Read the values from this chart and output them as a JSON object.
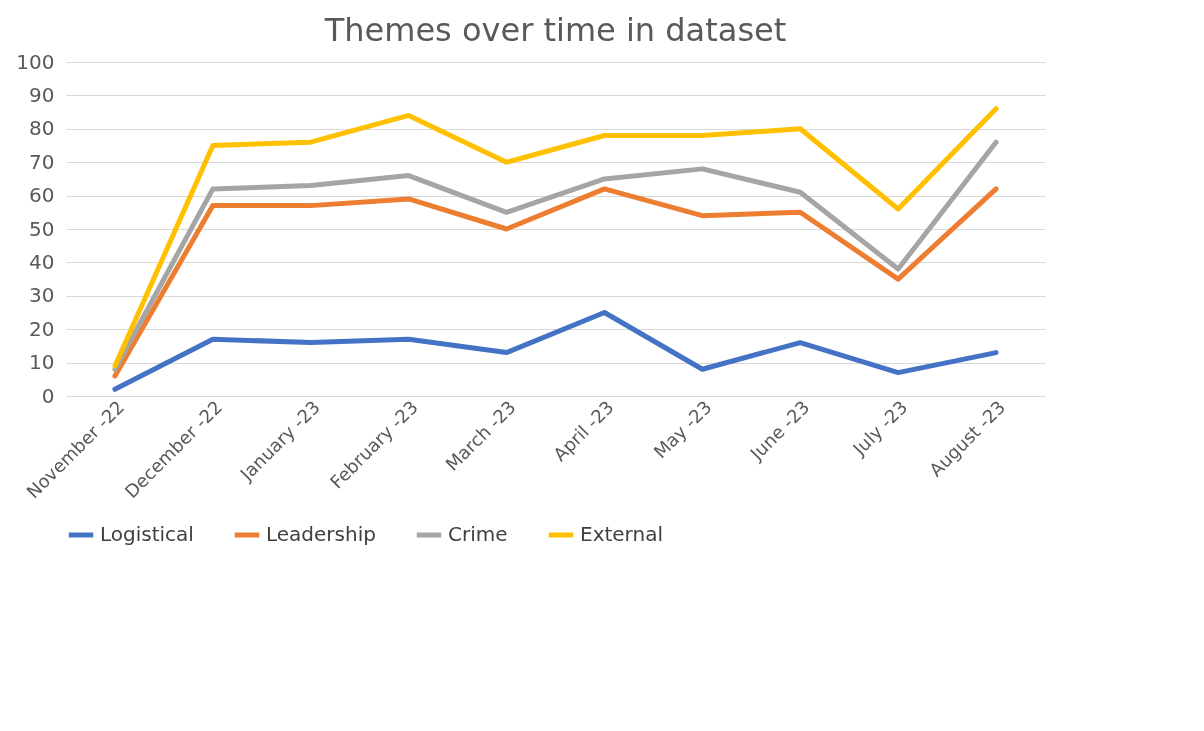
{
  "chart_data": {
    "type": "line",
    "title": "Themes over time in dataset",
    "categories": [
      "November -22",
      "December -22",
      "January -23",
      "February -23",
      "March -23",
      "April -23",
      "May -23",
      "June -23",
      "July -23",
      "August -23"
    ],
    "series": [
      {
        "name": "Logistical",
        "color": "#4472c4",
        "values": [
          2,
          17,
          16,
          17,
          13,
          25,
          8,
          16,
          7,
          13
        ]
      },
      {
        "name": "Leadership",
        "color": "#ed7d31",
        "values": [
          6,
          57,
          57,
          59,
          50,
          62,
          54,
          55,
          35,
          62
        ]
      },
      {
        "name": "Crime",
        "color": "#a5a5a5",
        "values": [
          8,
          62,
          63,
          66,
          55,
          65,
          68,
          61,
          38,
          76
        ]
      },
      {
        "name": "External",
        "color": "#ffc000",
        "values": [
          9,
          75,
          76,
          84,
          70,
          78,
          78,
          80,
          56,
          86
        ]
      }
    ],
    "ylim": [
      0,
      100
    ],
    "yticks": [
      0,
      10,
      20,
      30,
      40,
      50,
      60,
      70,
      80,
      90,
      100
    ],
    "grid": "y",
    "legend": "bottom"
  }
}
